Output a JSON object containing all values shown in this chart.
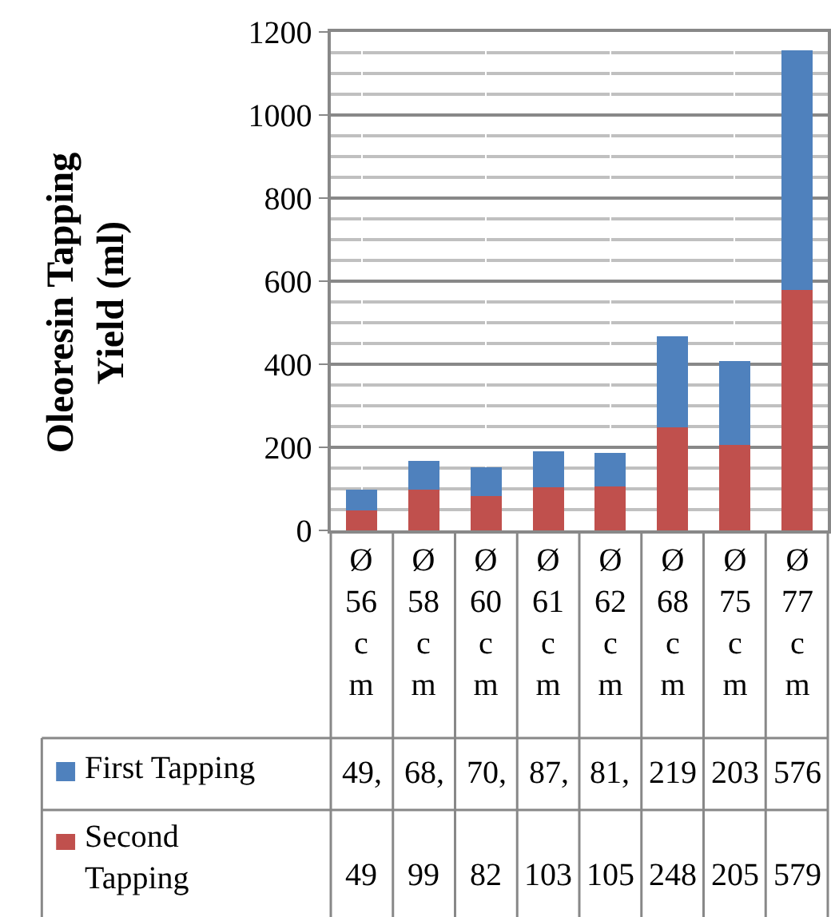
{
  "chart_data": {
    "type": "bar",
    "stacked": true,
    "ylabel": "Oleoresin Tapping Yield (ml)",
    "categories": [
      "Ø 56 cm",
      "Ø 58 cm",
      "Ø 60 cm",
      "Ø 61 cm",
      "Ø 62 cm",
      "Ø 68 cm",
      "Ø 75 cm",
      "Ø 77 cm"
    ],
    "series": [
      {
        "name": "Second Tapping",
        "color": "#c0504d",
        "values": [
          49,
          99,
          82,
          103,
          105,
          248,
          205,
          579
        ],
        "value_labels": [
          "49",
          "99",
          "82",
          "103",
          "105",
          "248",
          "205",
          "579"
        ]
      },
      {
        "name": "First Tapping",
        "color": "#4f81bd",
        "values": [
          49,
          68,
          70,
          87,
          81,
          219,
          203,
          576
        ],
        "value_labels": [
          "49,",
          "68,",
          "70,",
          "87,",
          "81,",
          "219",
          "203",
          "576"
        ]
      }
    ],
    "ylim": [
      0,
      1200
    ],
    "yticks": [
      0,
      200,
      400,
      600,
      800,
      1000,
      1200
    ],
    "grid": true,
    "legend": "bottom"
  }
}
